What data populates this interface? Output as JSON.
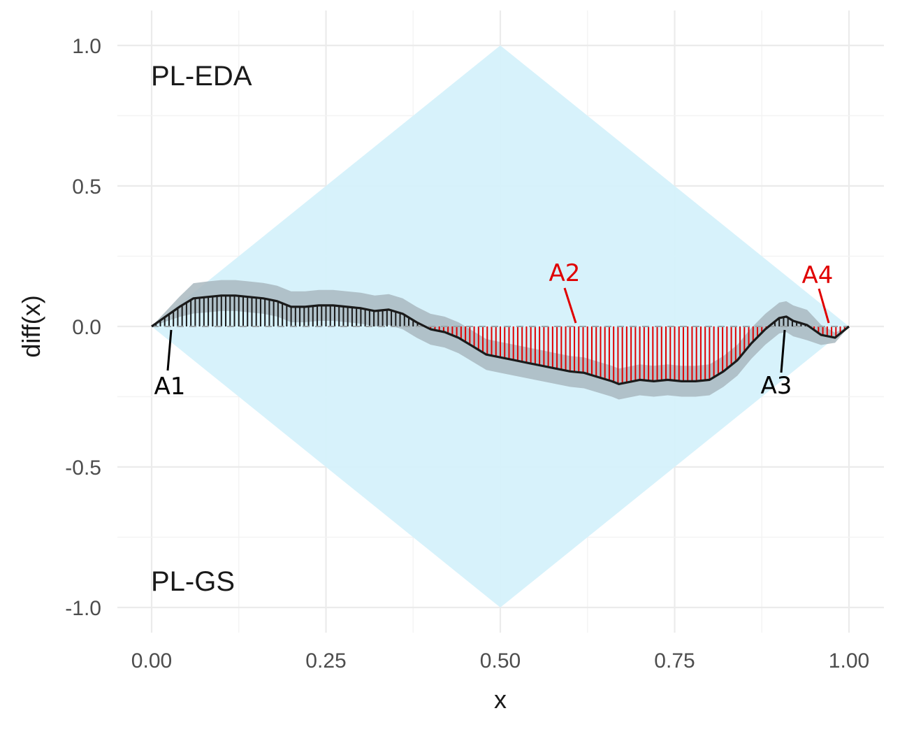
{
  "chart_data": {
    "type": "line",
    "title": "",
    "xlabel": "x",
    "ylabel": "diff(x)",
    "xlim": [
      0,
      1
    ],
    "ylim": [
      -1,
      1
    ],
    "grid": true,
    "x_ticks": [
      "0.00",
      "0.25",
      "0.50",
      "0.75",
      "1.00"
    ],
    "y_ticks": [
      "1.0",
      "0.5",
      "0.0",
      "-0.5",
      "-1.0"
    ],
    "corner_labels": {
      "top": "PL-EDA",
      "bottom": "PL-GS"
    },
    "envelope": {
      "shape": "diamond",
      "points": [
        [
          0,
          0
        ],
        [
          0.5,
          1
        ],
        [
          1,
          0
        ],
        [
          0.5,
          -1
        ]
      ],
      "color": "#d5f1fb"
    },
    "band_halfwidth": 0.055,
    "band_color": "#a9b9bf",
    "line_color": "#1a1a1a",
    "positive_hatch_color": "#1a1a1a",
    "negative_hatch_color": "#e00000",
    "curve": {
      "x": [
        0,
        0.02,
        0.04,
        0.06,
        0.08,
        0.1,
        0.12,
        0.14,
        0.16,
        0.18,
        0.2,
        0.22,
        0.24,
        0.26,
        0.28,
        0.3,
        0.32,
        0.34,
        0.36,
        0.38,
        0.4,
        0.42,
        0.44,
        0.46,
        0.48,
        0.5,
        0.52,
        0.54,
        0.56,
        0.58,
        0.6,
        0.62,
        0.64,
        0.66,
        0.67,
        0.68,
        0.7,
        0.72,
        0.74,
        0.76,
        0.78,
        0.8,
        0.82,
        0.84,
        0.86,
        0.88,
        0.9,
        0.91,
        0.92,
        0.94,
        0.96,
        0.98,
        1.0
      ],
      "y": [
        0,
        0.035,
        0.07,
        0.1,
        0.105,
        0.11,
        0.11,
        0.105,
        0.1,
        0.09,
        0.07,
        0.07,
        0.075,
        0.075,
        0.07,
        0.065,
        0.055,
        0.06,
        0.045,
        0.015,
        -0.01,
        -0.02,
        -0.04,
        -0.07,
        -0.1,
        -0.11,
        -0.12,
        -0.13,
        -0.14,
        -0.15,
        -0.16,
        -0.165,
        -0.18,
        -0.195,
        -0.205,
        -0.2,
        -0.19,
        -0.195,
        -0.19,
        -0.195,
        -0.195,
        -0.19,
        -0.16,
        -0.12,
        -0.06,
        -0.01,
        0.03,
        0.035,
        0.02,
        0.005,
        -0.03,
        -0.04,
        0
      ]
    },
    "annotations": [
      {
        "label": "A1",
        "color": "#000000",
        "x": 0.03
      },
      {
        "label": "A2",
        "color": "#e00000",
        "x": 0.61
      },
      {
        "label": "A3",
        "color": "#000000",
        "x": 0.905
      },
      {
        "label": "A4",
        "color": "#e00000",
        "x": 0.975
      }
    ]
  }
}
